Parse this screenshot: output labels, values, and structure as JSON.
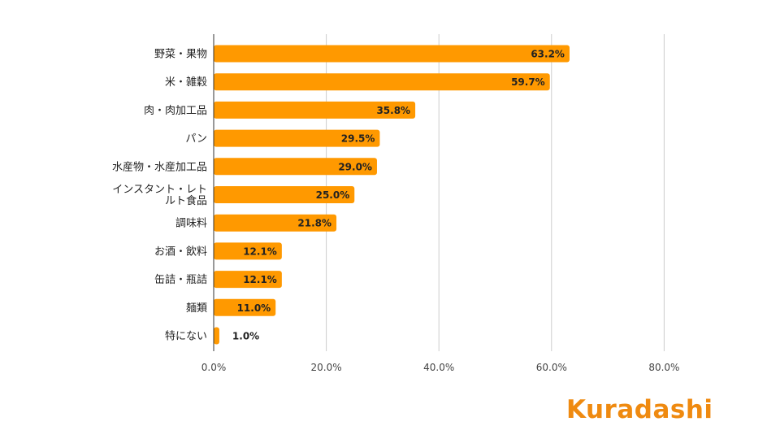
{
  "chart_data": {
    "type": "bar",
    "orientation": "horizontal",
    "categories": [
      "野菜・果物",
      "米・雑穀",
      "肉・肉加工品",
      "パン",
      "水産物・水産加工品",
      "インスタント・レトルト食品",
      "調味料",
      "お酒・飲料",
      "缶詰・瓶詰",
      "麺類",
      "特にない"
    ],
    "category_lines": [
      [
        "野菜・果物"
      ],
      [
        "米・雑穀"
      ],
      [
        "肉・肉加工品"
      ],
      [
        "パン"
      ],
      [
        "水産物・水産加工品"
      ],
      [
        "インスタント・レト",
        "ルト食品"
      ],
      [
        "調味料"
      ],
      [
        "お酒・飲料"
      ],
      [
        "缶詰・瓶詰"
      ],
      [
        "麺類"
      ],
      [
        "特にない"
      ]
    ],
    "values": [
      63.2,
      59.7,
      35.8,
      29.5,
      29.0,
      25.0,
      21.8,
      12.1,
      12.1,
      11.0,
      1.0
    ],
    "value_labels": [
      "63.2%",
      "59.7%",
      "35.8%",
      "29.5%",
      "29.0%",
      "25.0%",
      "21.8%",
      "12.1%",
      "12.1%",
      "11.0%",
      "1.0%"
    ],
    "xticks": [
      0,
      20,
      40,
      60,
      80
    ],
    "xtick_labels": [
      "0.0%",
      "20.0%",
      "40.0%",
      "60.0%",
      "80.0%"
    ],
    "xlim": [
      0,
      80
    ],
    "grid": true,
    "bar_color": "#ff9900",
    "grid_color": "#cccccc",
    "axis_color": "#333333"
  },
  "logo": {
    "text": "Kuradashi",
    "color": "#ef8a10"
  }
}
